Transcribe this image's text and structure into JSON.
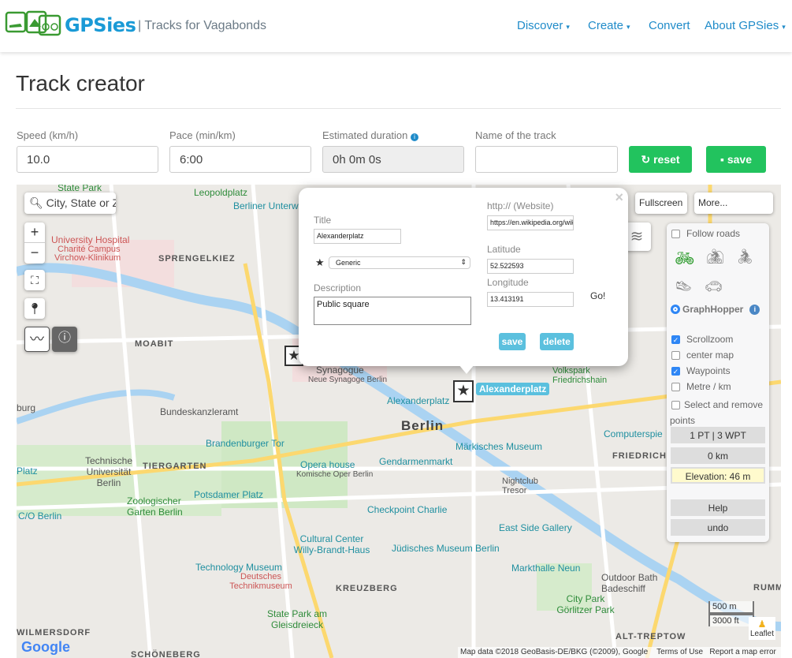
{
  "header": {
    "brand": "GPSies",
    "tagline": "| Tracks for Vagabonds",
    "nav": [
      {
        "label": "Discover",
        "dropdown": true
      },
      {
        "label": "Create",
        "dropdown": true
      },
      {
        "label": "Convert",
        "dropdown": false
      },
      {
        "label": "About GPSies",
        "dropdown": true
      }
    ],
    "caret": "▾"
  },
  "page": {
    "title": "Track creator"
  },
  "form": {
    "speed_label": "Speed (km/h)",
    "speed": "10.0",
    "pace_label": "Pace (min/km)",
    "pace": "6:00",
    "duration_label": "Estimated duration",
    "duration": "0h 0m 0s",
    "name_label": "Name of the track",
    "name": "",
    "reset_label": "reset",
    "save_label": "save"
  },
  "map": {
    "search_placeholder": "City, State or Zip",
    "zoom_in": "+",
    "zoom_out": "−",
    "fullscreen_label": "Fullscreen",
    "more_label": "More...",
    "labels": [
      {
        "t": "State Park",
        "c": "g"
      },
      {
        "t": "Leopoldplatz",
        "c": "g"
      },
      {
        "t": "Berliner Unterw",
        "c": "b"
      },
      {
        "t": "University Hospital",
        "c": "r"
      },
      {
        "t": "Charité Campus",
        "c": "r"
      },
      {
        "t": "Virchow-Klinikum",
        "c": "r"
      },
      {
        "t": "SPRENGELKIEZ",
        "c": "d"
      },
      {
        "t": "MOABIT",
        "c": "d"
      },
      {
        "t": "Bundeskanzleramt",
        "c": ""
      },
      {
        "t": "Synagogue",
        "c": ""
      },
      {
        "t": "Neue Synagoge Berlin",
        "c": ""
      },
      {
        "t": "Alexanderplatz",
        "c": "b"
      },
      {
        "t": "Berlin",
        "c": "big"
      },
      {
        "t": "Volkspark Friedrichshain",
        "c": "g"
      },
      {
        "t": "Brandenburger Tor",
        "c": "b"
      },
      {
        "t": "Opera house",
        "c": "b"
      },
      {
        "t": "Komische Oper Berlin",
        "c": ""
      },
      {
        "t": "Gendarmenmarkt",
        "c": "b"
      },
      {
        "t": "Märkisches Museum",
        "c": "b"
      },
      {
        "t": "Technische Universität Berlin",
        "c": ""
      },
      {
        "t": "TIERGARTEN",
        "c": "d"
      },
      {
        "t": "Potsdamer Platz",
        "c": "b"
      },
      {
        "t": "Zoologischer Garten Berlin",
        "c": "g"
      },
      {
        "t": "C/O Berlin",
        "c": "b"
      },
      {
        "t": "Checkpoint Charlie",
        "c": "b"
      },
      {
        "t": "Nightclub Tresor",
        "c": ""
      },
      {
        "t": "East Side Gallery",
        "c": "b"
      },
      {
        "t": "Computerspie",
        "c": "b"
      },
      {
        "t": "FRIEDRICHS",
        "c": "d"
      },
      {
        "t": "Cultural Center Willy-Brandt-Haus",
        "c": "b"
      },
      {
        "t": "Jüdisches Museum Berlin",
        "c": "b"
      },
      {
        "t": "Technology Museum",
        "c": "b"
      },
      {
        "t": "Deutsches Technikmuseum",
        "c": "r"
      },
      {
        "t": "KREUZBERG",
        "c": "d"
      },
      {
        "t": "Markthalle Neun",
        "c": "b"
      },
      {
        "t": "Outdoor Bath Badeschiff",
        "c": ""
      },
      {
        "t": "City Park Görlitzer Park",
        "c": "g"
      },
      {
        "t": "State Park am Gleisdreieck",
        "c": "g"
      },
      {
        "t": "WILMERSDORF",
        "c": "d"
      },
      {
        "t": "SCHÖNEBERG",
        "c": "d"
      },
      {
        "t": "ALT-TREPTOW",
        "c": "d"
      },
      {
        "t": "RUMM",
        "c": "d"
      },
      {
        "t": "burg",
        "c": ""
      },
      {
        "t": "Platz",
        "c": "b"
      }
    ],
    "marker_label": "Alexanderplatz",
    "scale_m": "500 m",
    "scale_ft": "3000 ft",
    "leaflet": "Leaflet",
    "google": "Google",
    "attribution": "Map data ©2018 GeoBasis-DE/BKG (©2009), Google",
    "terms": "Terms of Use",
    "report": "Report a map error"
  },
  "popup": {
    "title_label": "Title",
    "title": "Alexanderplatz",
    "type": "Generic",
    "desc_label": "Description",
    "desc": "Public square",
    "website_label": "http:// (Website)",
    "website": "https://en.wikipedia.org/wiki/Alexanderplatz",
    "lat_label": "Latitude",
    "lat": "52.522593",
    "lon_label": "Longitude",
    "lon": "13.413191",
    "go": "Go!",
    "save": "save",
    "delete": "delete",
    "close": "×"
  },
  "panel": {
    "follow_roads": "Follow roads",
    "router": "GraphHopper",
    "scrollzoom": "Scrollzoom",
    "center_map": "center map",
    "waypoints": "Waypoints",
    "metre": "Metre / km",
    "select_remove": "Select and remove points",
    "points": "1 PT | 3 WPT",
    "distance": "0 km",
    "elevation": "Elevation: 46 m",
    "help": "Help",
    "undo": "undo",
    "checked": {
      "follow_roads": false,
      "scrollzoom": true,
      "center_map": false,
      "waypoints": true,
      "metre": false,
      "select_remove": false
    }
  },
  "colors": {
    "brand": "#1a9ad6",
    "green": "#22c35e",
    "popup_button": "#5bc0de",
    "nav": "#1f8bc9"
  }
}
